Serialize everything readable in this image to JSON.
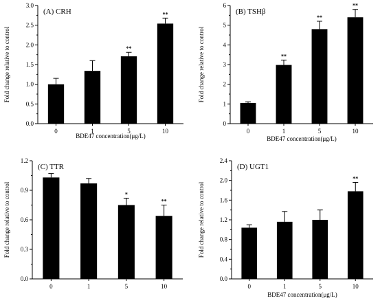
{
  "chart_data": [
    {
      "type": "bar",
      "title": "(A)  CRH",
      "xlabel": "BDE47 concentration(μg/L)",
      "ylabel": "Fold change relative to control",
      "categories": [
        "0",
        "1",
        "5",
        "10"
      ],
      "values": [
        1.0,
        1.34,
        1.71,
        2.54
      ],
      "errors": [
        0.15,
        0.26,
        0.1,
        0.14
      ],
      "significance": [
        "",
        "",
        "**",
        "**"
      ],
      "ylim": [
        0,
        3.0
      ],
      "yticks": [
        "0.0",
        "0.5",
        "1.0",
        "1.5",
        "2.0",
        "2.5",
        "3.0"
      ],
      "grid": false
    },
    {
      "type": "bar",
      "title": "(B)  TSHβ",
      "xlabel": "BDE47 concentration(μg/L)",
      "ylabel": "Fold change relative to control",
      "categories": [
        "0",
        "1",
        "5",
        "10"
      ],
      "values": [
        1.05,
        2.98,
        4.8,
        5.4
      ],
      "errors": [
        0.06,
        0.25,
        0.4,
        0.4
      ],
      "significance": [
        "",
        "**",
        "**",
        "**"
      ],
      "ylim": [
        0,
        6
      ],
      "yticks": [
        "0",
        "1",
        "2",
        "3",
        "4",
        "5",
        "6"
      ],
      "grid": false
    },
    {
      "type": "bar",
      "title": "(C)  TTR",
      "xlabel": "",
      "ylabel": "Fold change relative to control",
      "categories": [
        "0",
        "1",
        "5",
        "10"
      ],
      "values": [
        1.03,
        0.97,
        0.75,
        0.64
      ],
      "errors": [
        0.04,
        0.05,
        0.07,
        0.11
      ],
      "significance": [
        "",
        "",
        "*",
        "**"
      ],
      "ylim": [
        0,
        1.2
      ],
      "yticks": [
        "0.0",
        "0.3",
        "0.6",
        "0.9",
        "1.2"
      ],
      "grid": false
    },
    {
      "type": "bar",
      "title": "(D)  UGT1",
      "xlabel": "BDE47 concentration(μg/L)",
      "ylabel": "Fold change relative to control",
      "categories": [
        "0",
        "1",
        "5",
        "10"
      ],
      "values": [
        1.04,
        1.16,
        1.2,
        1.78
      ],
      "errors": [
        0.06,
        0.21,
        0.2,
        0.18
      ],
      "significance": [
        "",
        "",
        "",
        "**"
      ],
      "ylim": [
        0,
        2.4
      ],
      "yticks": [
        "0.0",
        "0.4",
        "0.8",
        "1.2",
        "1.6",
        "2.0",
        "2.4"
      ],
      "grid": false
    }
  ]
}
